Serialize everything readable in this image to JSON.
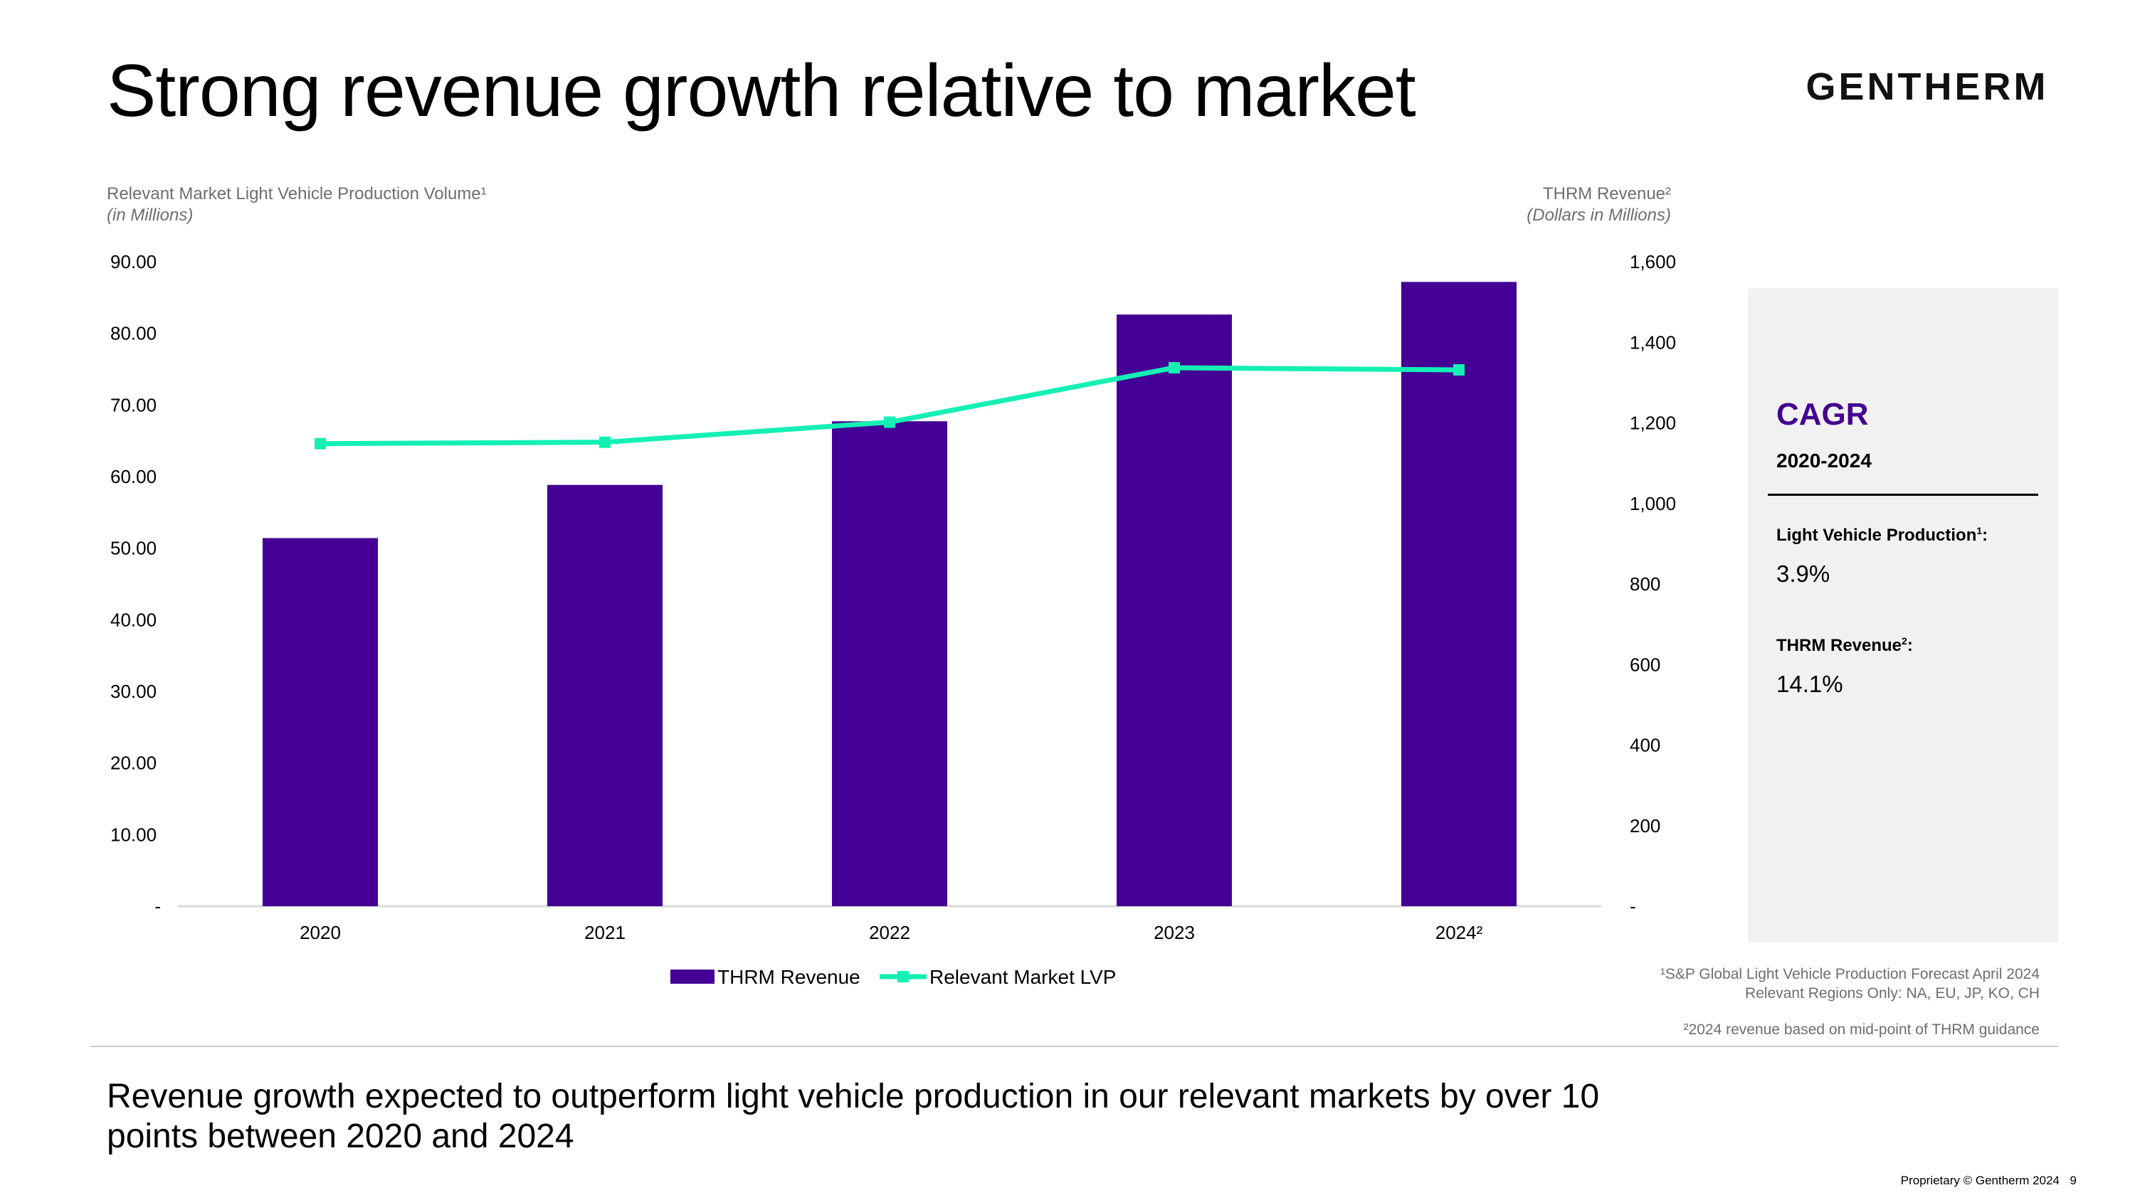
{
  "slide": {
    "title": "Strong revenue growth relative to market",
    "brand": "GENTHERM",
    "bottom_text": "Revenue growth expected to outperform light vehicle production in our relevant markets by over 10 points between 2020 and 2024",
    "proprietary": "Proprietary © Gentherm 2024",
    "page_number": "9"
  },
  "axes": {
    "left_caption": "Relevant Market Light Vehicle Production Volume¹",
    "left_unit": "(in Millions)",
    "right_caption": "THRM Revenue²",
    "right_unit": "(Dollars in Millions)"
  },
  "cagr": {
    "title": "CAGR",
    "period": "2020-2024",
    "lvp_label": "Light Vehicle Production",
    "lvp_sup": "1",
    "lvp_value": "3.9%",
    "rev_label": "THRM Revenue",
    "rev_sup": "2",
    "rev_value": "14.1%"
  },
  "footnotes": {
    "note1_line1": "¹S&P Global Light Vehicle Production Forecast April 2024",
    "note1_line2": "Relevant Regions Only: NA, EU, JP, KO, CH",
    "note2": "²2024 revenue based on mid-point of THRM guidance"
  },
  "colors": {
    "bar": "#440094",
    "line": "#14f0b4",
    "accent": "#44008f"
  },
  "chart_data": {
    "type": "bar+line",
    "categories": [
      "2020",
      "2021",
      "2022",
      "2023",
      "2024²"
    ],
    "series": [
      {
        "name": "THRM Revenue",
        "type": "bar",
        "axis": "right",
        "values": [
          914,
          1046,
          1204,
          1469,
          1550
        ]
      },
      {
        "name": "Relevant Market LVP",
        "type": "line",
        "axis": "left",
        "values": [
          64.6,
          64.8,
          67.6,
          75.2,
          74.9
        ]
      }
    ],
    "left_axis": {
      "min": 0,
      "max": 90,
      "step": 10,
      "tick_labels": [
        "-",
        "10.00",
        "20.00",
        "30.00",
        "40.00",
        "50.00",
        "60.00",
        "70.00",
        "80.00",
        "90.00"
      ]
    },
    "right_axis": {
      "min": 0,
      "max": 1600,
      "step": 200,
      "tick_labels": [
        "-",
        "200",
        "400",
        "600",
        "800",
        "1,000",
        "1,200",
        "1,400",
        "1,600"
      ]
    },
    "legend": [
      "THRM Revenue",
      "Relevant Market LVP"
    ],
    "legend_position": "bottom-center"
  }
}
